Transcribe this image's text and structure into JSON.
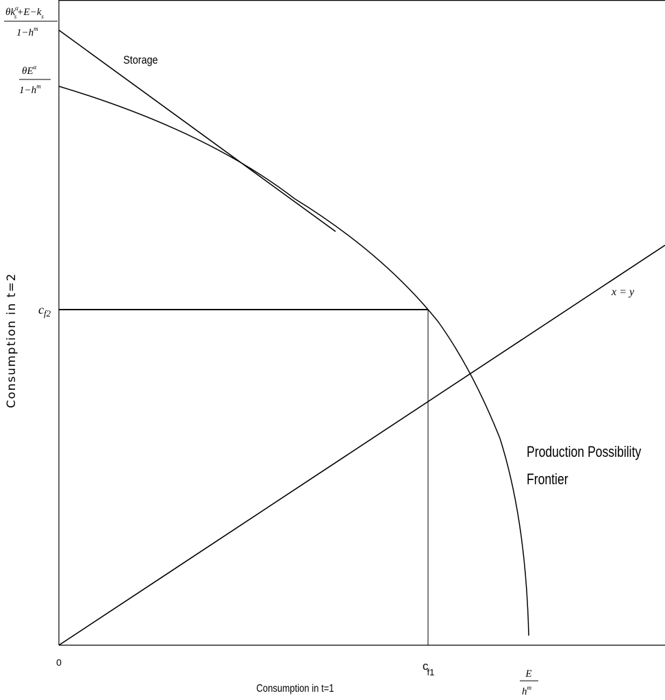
{
  "figure": {
    "ylabel": "Consumption in t=2",
    "xlabel": "Consumption in t=1",
    "origin": "0",
    "y_ticks": {
      "storage_intercept": {
        "numerator": "θk",
        "sup": "α",
        "sub": "s",
        "rest": "+E−k",
        "rest_sub": "s",
        "denominator_base": "1−h",
        "denominator_sup": "m"
      },
      "ppf_intercept": {
        "numerator_base": "θE",
        "numerator_sup": "α",
        "denominator_base": "1−h",
        "denominator_sup": "m"
      },
      "cf2": {
        "base": "c",
        "sub": "f2"
      }
    },
    "x_ticks": {
      "cf1": {
        "base": "c",
        "sub": "f1"
      },
      "ppf_x_intercept": {
        "numerator": "E",
        "denominator_base": "h",
        "denominator_sup": "m"
      }
    },
    "annotations": {
      "storage": "Storage",
      "ppf_line1": "Production Possibility",
      "ppf_line2": "Frontier",
      "diagonal": "x = y"
    }
  }
}
